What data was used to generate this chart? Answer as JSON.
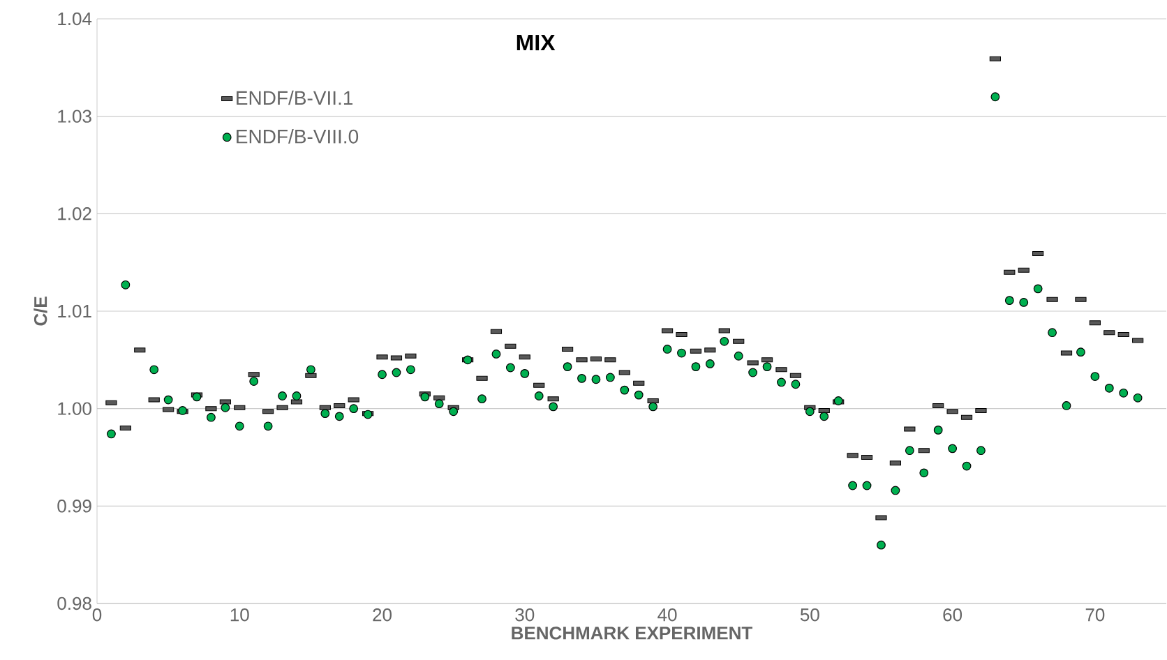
{
  "chart_data": {
    "type": "scatter",
    "title": "MIX",
    "xlabel": "BENCHMARK EXPERIMENT",
    "ylabel": "C/E",
    "x": [
      1,
      2,
      3,
      4,
      5,
      6,
      7,
      8,
      9,
      10,
      11,
      12,
      13,
      14,
      15,
      16,
      17,
      18,
      19,
      20,
      21,
      22,
      23,
      24,
      25,
      26,
      27,
      28,
      29,
      30,
      31,
      32,
      33,
      34,
      35,
      36,
      37,
      38,
      39,
      40,
      41,
      42,
      43,
      44,
      45,
      46,
      47,
      48,
      49,
      50,
      51,
      52,
      53,
      54,
      55,
      56,
      57,
      58,
      59,
      60,
      61,
      62,
      63,
      64,
      65,
      66,
      67,
      68,
      69,
      70,
      71,
      72,
      73
    ],
    "series": [
      {
        "name": "ENDF/B-VII.1",
        "color": "#595959",
        "marker": "square",
        "values": [
          1.0006,
          0.998,
          1.006,
          1.0009,
          0.9999,
          0.9997,
          1.0014,
          1.0,
          1.0007,
          1.0001,
          1.0035,
          0.9997,
          1.0001,
          1.0007,
          1.0034,
          1.0001,
          1.0003,
          1.0009,
          0.9995,
          1.0053,
          1.0052,
          1.0054,
          1.0015,
          1.0011,
          1.0001,
          1.005,
          1.0031,
          1.0079,
          1.0064,
          1.0053,
          1.0024,
          1.001,
          1.0061,
          1.005,
          1.0051,
          1.005,
          1.0037,
          1.0026,
          1.0008,
          1.008,
          1.0076,
          1.0059,
          1.006,
          1.008,
          1.0069,
          1.0047,
          1.005,
          1.004,
          1.0034,
          1.0001,
          0.9998,
          1.0007,
          0.9952,
          0.995,
          0.9888,
          0.9944,
          0.9979,
          0.9957,
          1.0003,
          0.9997,
          0.9991,
          0.9998,
          1.0359,
          1.014,
          1.0142,
          1.0159,
          1.0112,
          1.0057,
          1.0112,
          1.0088,
          1.0078,
          1.0076,
          1.007
        ]
      },
      {
        "name": "ENDF/B-VIII.0",
        "color": "#00b050",
        "marker": "circle",
        "values": [
          0.9974,
          1.0127,
          null,
          1.004,
          1.0009,
          0.9998,
          1.0012,
          0.9991,
          1.0001,
          0.9982,
          1.0028,
          0.9982,
          1.0013,
          1.0013,
          1.004,
          0.9995,
          0.9992,
          1.0,
          0.9994,
          1.0035,
          1.0037,
          1.004,
          1.0012,
          1.0005,
          0.9997,
          1.005,
          1.001,
          1.0056,
          1.0042,
          1.0036,
          1.0013,
          1.0002,
          1.0043,
          1.0031,
          1.003,
          1.0032,
          1.0019,
          1.0014,
          1.0002,
          1.0061,
          1.0057,
          1.0043,
          1.0046,
          1.0069,
          1.0054,
          1.0037,
          1.0043,
          1.0027,
          1.0025,
          0.9997,
          0.9992,
          1.0008,
          0.9921,
          0.9921,
          0.986,
          0.9916,
          0.9957,
          0.9934,
          0.9978,
          0.9959,
          0.9941,
          0.9957,
          1.032,
          1.0111,
          1.0109,
          1.0123,
          1.0078,
          1.0003,
          1.0058,
          1.0033,
          1.0021,
          1.0016,
          1.0011
        ]
      }
    ],
    "xlim": [
      0,
      75
    ],
    "ylim": [
      0.98,
      1.04
    ],
    "xticks": [
      0,
      10,
      20,
      30,
      40,
      50,
      60,
      70
    ],
    "yticks": [
      {
        "value": 0.98,
        "label": "0.98"
      },
      {
        "value": 0.99,
        "label": "0.99"
      },
      {
        "value": 1.0,
        "label": "1.00"
      },
      {
        "value": 1.01,
        "label": "1.01"
      },
      {
        "value": 1.02,
        "label": "1.02"
      },
      {
        "value": 1.03,
        "label": "1.03"
      },
      {
        "value": 1.04,
        "label": "1.04"
      }
    ],
    "grid": "y",
    "legend": "top left"
  }
}
